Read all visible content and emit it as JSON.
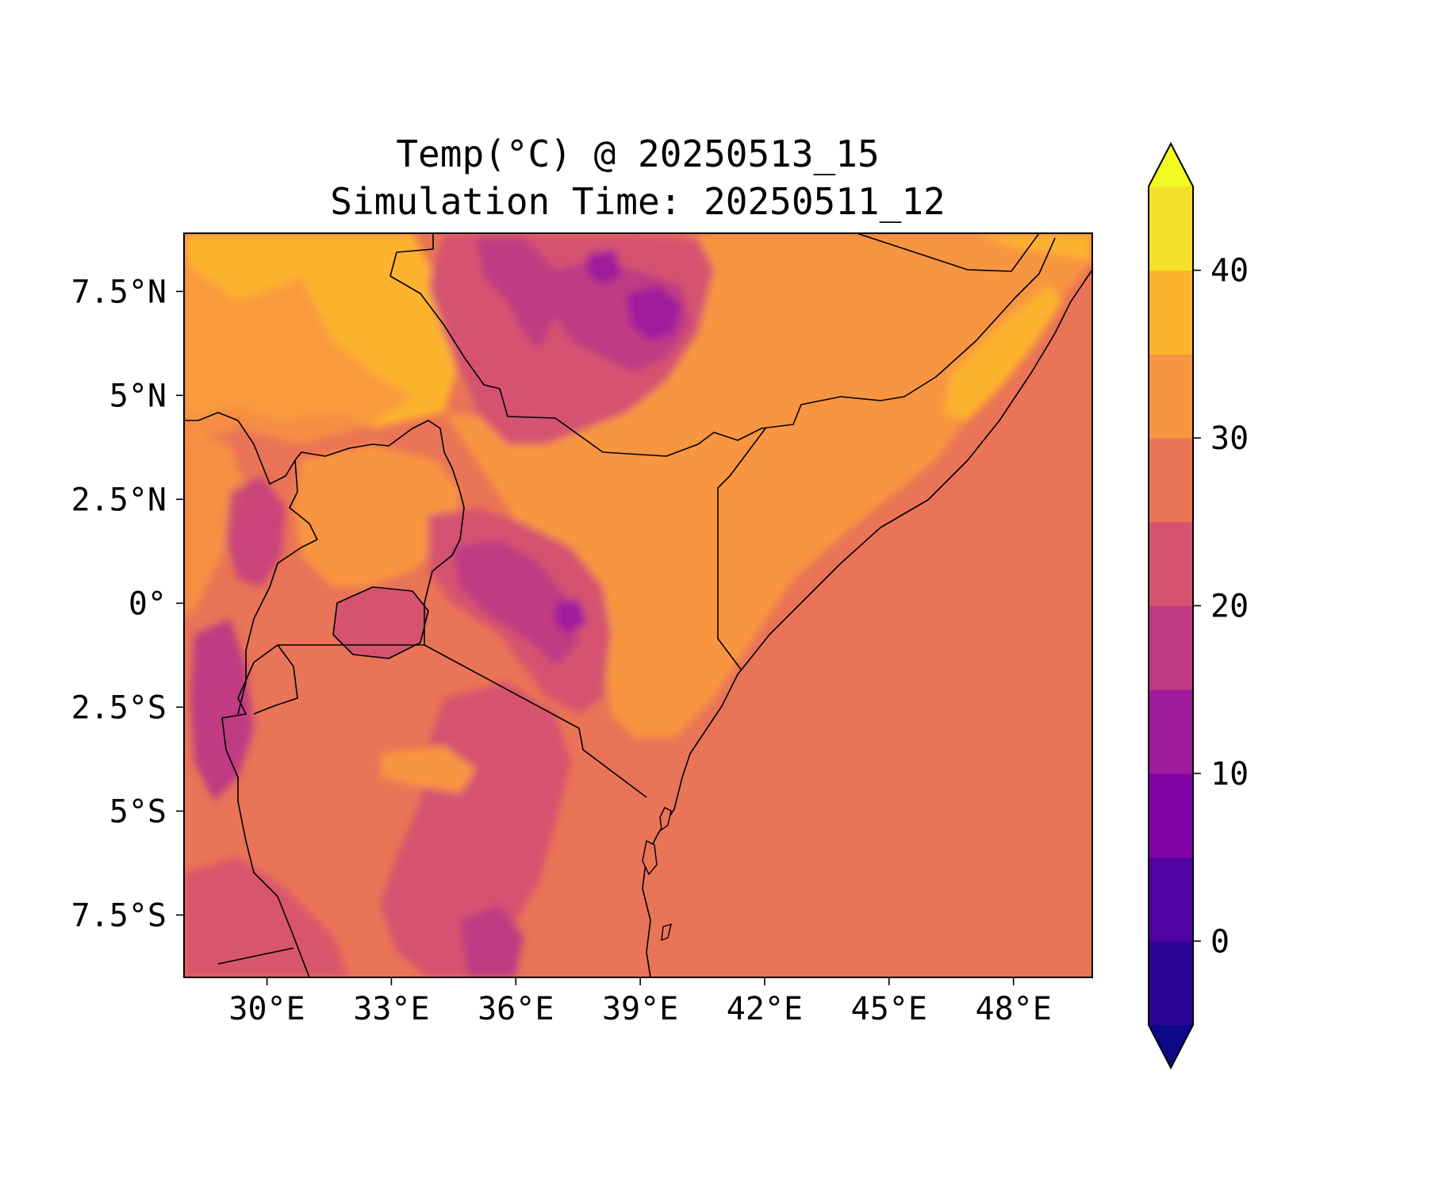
{
  "chart_data": {
    "type": "heatmap",
    "title": "Temp(°C) @ 20250513_15",
    "subtitle": "Simulation Time: 20250511_12",
    "x_ticks": [
      "30°E",
      "33°E",
      "36°E",
      "39°E",
      "42°E",
      "45°E",
      "48°E"
    ],
    "x_tick_values": [
      30,
      33,
      36,
      39,
      42,
      45,
      48
    ],
    "y_ticks": [
      "7.5°N",
      "5°N",
      "2.5°N",
      "0°",
      "2.5°S",
      "5°S",
      "7.5°S"
    ],
    "y_tick_values": [
      7.5,
      5,
      2.5,
      0,
      -2.5,
      -5,
      -7.5
    ],
    "lon_range": [
      28.0,
      49.9
    ],
    "lat_range": [
      -9.0,
      8.9
    ],
    "colorbar": {
      "ticks": [
        40,
        30,
        20,
        10,
        0
      ],
      "range": [
        -5,
        45
      ],
      "levels": [
        -5,
        0,
        5,
        10,
        15,
        20,
        25,
        30,
        35,
        40,
        45
      ],
      "colors": [
        "#0d0887",
        "#2c0594",
        "#5102a3",
        "#8004a8",
        "#a01a9c",
        "#c03a83",
        "#d5536f",
        "#ea7457",
        "#f89540",
        "#fdb32f",
        "#f3e02a",
        "#f0f921"
      ],
      "extend": "both"
    },
    "colormap": "plasma"
  }
}
